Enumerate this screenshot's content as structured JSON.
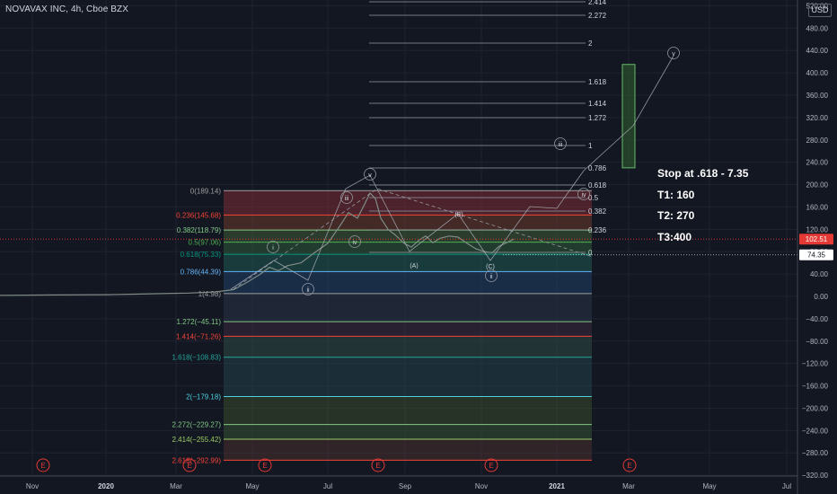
{
  "header": {
    "title": "NOVAVAX INC, 4h, Cboe BZX",
    "currency": "USD"
  },
  "colors": {
    "background": "#131722",
    "grid": "#1f2331",
    "text": "#b2b5be",
    "candle": "#7f8c86",
    "current_price_tag": "#e53935",
    "earnings": "#e53935"
  },
  "notes": [
    "Stop at .618 - 7.35",
    "T1: 160",
    "T2: 270",
    "T3:400"
  ],
  "chart_data": {
    "type": "line",
    "title": "NOVAVAX INC, 4h, Cboe BZX",
    "y_axis": {
      "ylim": [
        -325,
        520
      ],
      "ticks": [
        -320,
        -280,
        -240,
        -200,
        -160,
        -120,
        -80,
        -40,
        0,
        40,
        80,
        120,
        160,
        200,
        240,
        280,
        320,
        360,
        400,
        440,
        480,
        520
      ]
    },
    "x_axis": {
      "labels": [
        "Nov",
        "2020",
        "Mar",
        "May",
        "Jul",
        "Sep",
        "Nov",
        "2021",
        "Mar",
        "May",
        "Jul"
      ]
    },
    "current_price": {
      "label": "102.51",
      "value": 102.51
    },
    "marked_price": {
      "label": "74.35",
      "value": 74.35
    },
    "fib_retracement": [
      {
        "ratio": "0",
        "value": "189.14",
        "label": "0(189.14)",
        "color": "#9e9e9e"
      },
      {
        "ratio": "0.236",
        "value": "145.68",
        "label": "0.236(145.68)",
        "color": "#f44336"
      },
      {
        "ratio": "0.382",
        "value": "118.79",
        "label": "0.382(118.79)",
        "color": "#81c784"
      },
      {
        "ratio": "0.5",
        "value": "97.06",
        "label": "0.5(97.06)",
        "color": "#4caf50"
      },
      {
        "ratio": "0.618",
        "value": "75.33",
        "label": "0.618(75.33)",
        "color": "#089981"
      },
      {
        "ratio": "0.786",
        "value": "44.39",
        "label": "0.786(44.39)",
        "color": "#64b5f6"
      },
      {
        "ratio": "1",
        "value": "4.98",
        "label": "1(4.98)",
        "color": "#9e9e9e"
      },
      {
        "ratio": "1.272",
        "value": "-45.11",
        "label": "1.272(−45.11)",
        "color": "#81c784"
      },
      {
        "ratio": "1.414",
        "value": "-71.26",
        "label": "1.414(−71.26)",
        "color": "#f44336"
      },
      {
        "ratio": "1.618",
        "value": "-108.83",
        "label": "1.618(−108.83)",
        "color": "#26a69a"
      },
      {
        "ratio": "2",
        "value": "-179.18",
        "label": "2(−179.18)",
        "color": "#4dd0e1"
      },
      {
        "ratio": "2.272",
        "value": "-229.27",
        "label": "2.272(−229.27)",
        "color": "#81c784"
      },
      {
        "ratio": "2.414",
        "value": "-255.42",
        "label": "2.414(−255.42)",
        "color": "#9ccc65"
      },
      {
        "ratio": "2.618",
        "value": "-292.99",
        "label": "2.618(−292.99)",
        "color": "#f44336"
      }
    ],
    "fib_extension_labels": [
      "0",
      "0.236",
      "0.382",
      "0.5",
      "0.618",
      "0.786",
      "1",
      "1.272",
      "1.414",
      "1.618",
      "2",
      "2.272",
      "2.414"
    ],
    "wave_labels": [
      "i",
      "ii",
      "iii",
      "iv",
      "v",
      "(A)",
      "(B)",
      "(C)",
      "ii",
      "iii",
      "iv",
      "v"
    ],
    "earnings_markers": [
      "E",
      "E",
      "E",
      "E",
      "E",
      "E"
    ],
    "price_path": [
      [
        0,
        2
      ],
      [
        60,
        2.5
      ],
      [
        120,
        3
      ],
      [
        150,
        4
      ],
      [
        180,
        5
      ],
      [
        210,
        6
      ],
      [
        240,
        8
      ],
      [
        260,
        12
      ],
      [
        275,
        25
      ],
      [
        290,
        40
      ],
      [
        300,
        52
      ],
      [
        310,
        46
      ],
      [
        320,
        55
      ],
      [
        335,
        60
      ],
      [
        350,
        78
      ],
      [
        365,
        95
      ],
      [
        378,
        125
      ],
      [
        388,
        150
      ],
      [
        398,
        140
      ],
      [
        406,
        165
      ],
      [
        412,
        185
      ],
      [
        418,
        175
      ],
      [
        424,
        140
      ],
      [
        432,
        120
      ],
      [
        440,
        110
      ],
      [
        450,
        95
      ],
      [
        458,
        88
      ],
      [
        466,
        100
      ],
      [
        474,
        108
      ],
      [
        482,
        96
      ],
      [
        490,
        104
      ],
      [
        500,
        108
      ],
      [
        510,
        106
      ],
      [
        520,
        95
      ],
      [
        530,
        85
      ],
      [
        540,
        80
      ],
      [
        548,
        78
      ],
      [
        556,
        90
      ],
      [
        564,
        96
      ],
      [
        572,
        102.5
      ]
    ],
    "projection_box": {
      "low": 230,
      "high": 415
    }
  }
}
